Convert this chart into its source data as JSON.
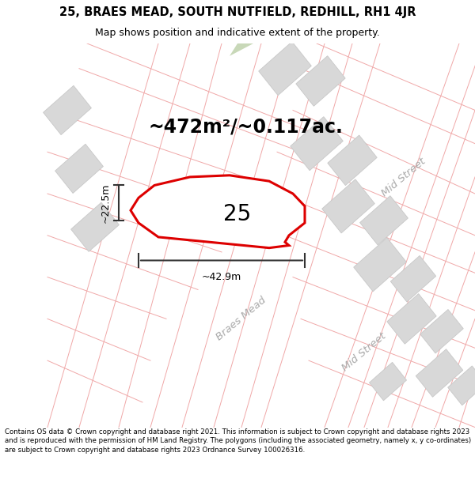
{
  "title_line1": "25, BRAES MEAD, SOUTH NUTFIELD, REDHILL, RH1 4JR",
  "title_line2": "Map shows position and indicative extent of the property.",
  "area_text": "~472m²/~0.117ac.",
  "plot_number": "25",
  "dim_width": "~42.9m",
  "dim_height": "~22.5m",
  "footer_text": "Contains OS data © Crown copyright and database right 2021. This information is subject to Crown copyright and database rights 2023 and is reproduced with the permission of HM Land Registry. The polygons (including the associated geometry, namely x, y co-ordinates) are subject to Crown copyright and database rights 2023 Ordnance Survey 100026316.",
  "bg_color": "#ffffff",
  "map_bg": "#ffffff",
  "plot_fill": "#ffffff",
  "plot_edge": "#dd0000",
  "line_color": "#f0a8a8",
  "block_fill": "#d8d8d8",
  "block_edge": "#c8c8c8",
  "green_fill": "#c8d8b8",
  "street_label1": "Braes Mead",
  "street_label2": "Mid Street",
  "dim_color": "#333333",
  "title_fontsize": 10.5,
  "subtitle_fontsize": 9,
  "area_fontsize": 17,
  "plot_num_fontsize": 20,
  "dim_fontsize": 9,
  "street_fontsize": 9.5,
  "footer_fontsize": 6.2
}
